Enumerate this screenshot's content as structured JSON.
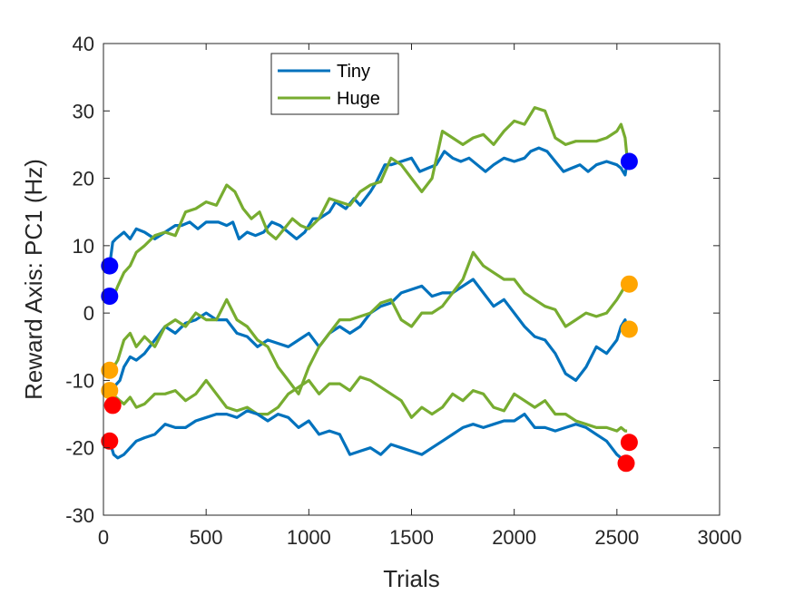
{
  "chart_data": {
    "type": "line",
    "xlabel": "Trials",
    "ylabel": "Reward Axis: PC1 (Hz)",
    "xlim": [
      0,
      3000
    ],
    "ylim": [
      -30,
      40
    ],
    "xticks": [
      0,
      500,
      1000,
      1500,
      2000,
      2500,
      3000
    ],
    "yticks": [
      -30,
      -20,
      -10,
      0,
      10,
      20,
      30,
      40
    ],
    "grid": false,
    "legend_position": "top-center",
    "legend": [
      {
        "name": "Tiny",
        "color": "#0072BD"
      },
      {
        "name": "Huge",
        "color": "#77AC30"
      }
    ],
    "series": [
      {
        "name": "Tiny",
        "group": "top",
        "color": "#0072BD",
        "x": [
          30,
          45,
          60,
          100,
          130,
          160,
          200,
          250,
          300,
          350,
          380,
          420,
          460,
          500,
          560,
          600,
          630,
          660,
          700,
          740,
          780,
          820,
          860,
          900,
          940,
          980,
          1020,
          1050,
          1100,
          1130,
          1180,
          1220,
          1250,
          1300,
          1330,
          1370,
          1400,
          1450,
          1500,
          1540,
          1580,
          1620,
          1660,
          1700,
          1740,
          1780,
          1820,
          1860,
          1900,
          1950,
          2000,
          2050,
          2080,
          2120,
          2160,
          2200,
          2240,
          2280,
          2320,
          2360,
          2400,
          2450,
          2500,
          2520,
          2540,
          2550
        ],
        "y": [
          7,
          10.5,
          11,
          12,
          11,
          12.5,
          12,
          11,
          12,
          13,
          13,
          13.5,
          12.5,
          13.5,
          13.5,
          13,
          13.5,
          11,
          12,
          11.5,
          12,
          13.5,
          13,
          12,
          11,
          12,
          14,
          14,
          15,
          16.5,
          15.5,
          17,
          16,
          18,
          19.5,
          22,
          22,
          22.5,
          23,
          21,
          21.5,
          22,
          24,
          23,
          22.5,
          23,
          22,
          21,
          22,
          23,
          22.5,
          23,
          24,
          24.5,
          24,
          22.5,
          21,
          21.5,
          22,
          21,
          22,
          22.5,
          22,
          21.5,
          20.5,
          22.5
        ]
      },
      {
        "name": "Huge",
        "group": "top",
        "color": "#77AC30",
        "x": [
          30,
          50,
          70,
          100,
          130,
          160,
          200,
          250,
          300,
          350,
          400,
          450,
          500,
          550,
          600,
          640,
          680,
          720,
          760,
          800,
          840,
          880,
          920,
          960,
          1000,
          1050,
          1100,
          1150,
          1200,
          1250,
          1300,
          1350,
          1400,
          1450,
          1500,
          1550,
          1600,
          1650,
          1700,
          1750,
          1800,
          1850,
          1900,
          1950,
          2000,
          2050,
          2100,
          2150,
          2200,
          2250,
          2300,
          2350,
          2400,
          2450,
          2500,
          2520,
          2540,
          2550
        ],
        "y": [
          2,
          2.5,
          4,
          6,
          7,
          9,
          10,
          11.5,
          12,
          11.5,
          15,
          15.5,
          16.5,
          16,
          19,
          18,
          15.5,
          14,
          15,
          12,
          11,
          12.5,
          14,
          13,
          12.5,
          14,
          17,
          16.5,
          16,
          18,
          19,
          19.5,
          23,
          22,
          20,
          18,
          20,
          27,
          26,
          25,
          26,
          26.5,
          25,
          27,
          28.5,
          28,
          30.5,
          30,
          26,
          25,
          25.5,
          25.5,
          25.5,
          26,
          27,
          28,
          26,
          23
        ]
      },
      {
        "name": "Tiny",
        "group": "middle",
        "color": "#0072BD",
        "x": [
          30,
          50,
          80,
          100,
          130,
          160,
          200,
          250,
          300,
          350,
          400,
          450,
          500,
          550,
          600,
          650,
          700,
          750,
          800,
          850,
          900,
          950,
          1000,
          1050,
          1100,
          1150,
          1200,
          1250,
          1300,
          1350,
          1400,
          1450,
          1500,
          1550,
          1600,
          1650,
          1700,
          1750,
          1800,
          1850,
          1900,
          1950,
          2000,
          2050,
          2100,
          2150,
          2200,
          2250,
          2300,
          2350,
          2400,
          2450,
          2500,
          2520,
          2540,
          2550
        ],
        "y": [
          -11.5,
          -11,
          -10,
          -8,
          -6.5,
          -7,
          -6,
          -4,
          -2,
          -3,
          -1.5,
          -1,
          0,
          -1,
          -1,
          -3,
          -3.5,
          -5,
          -4,
          -4.5,
          -5,
          -4,
          -3,
          -5,
          -3,
          -2,
          -3,
          -2,
          0,
          1,
          1.5,
          3,
          3.5,
          4,
          2.5,
          3,
          3,
          4,
          5,
          3,
          1,
          2,
          0,
          -2,
          -3.5,
          -4,
          -6,
          -9,
          -10,
          -8,
          -5,
          -6,
          -4,
          -2,
          -1,
          -2.5
        ]
      },
      {
        "name": "Huge",
        "group": "middle",
        "color": "#77AC30",
        "x": [
          30,
          50,
          70,
          100,
          130,
          160,
          200,
          250,
          300,
          350,
          400,
          450,
          500,
          550,
          600,
          650,
          700,
          750,
          800,
          850,
          900,
          950,
          1000,
          1050,
          1100,
          1150,
          1200,
          1250,
          1300,
          1350,
          1400,
          1450,
          1500,
          1550,
          1600,
          1650,
          1700,
          1750,
          1800,
          1850,
          1900,
          1950,
          2000,
          2050,
          2100,
          2150,
          2200,
          2250,
          2300,
          2350,
          2400,
          2450,
          2500,
          2520,
          2540,
          2550
        ],
        "y": [
          -8.5,
          -8,
          -7,
          -4,
          -3,
          -5,
          -3.5,
          -5,
          -2,
          -1,
          -2,
          0,
          -1,
          -1,
          2,
          -1,
          -2,
          -4,
          -5,
          -8,
          -10,
          -12,
          -8,
          -5,
          -3,
          -1,
          -1,
          -0.5,
          0,
          1.5,
          2,
          -1,
          -2,
          0,
          0,
          1,
          3,
          5,
          9,
          7,
          6,
          5,
          5,
          3,
          2,
          1,
          0.5,
          -2,
          -1,
          0,
          -0.5,
          0,
          2,
          3,
          4,
          4.3
        ]
      },
      {
        "name": "Huge",
        "group": "bottom",
        "color": "#77AC30",
        "x": [
          45,
          60,
          80,
          100,
          130,
          160,
          200,
          250,
          300,
          350,
          400,
          450,
          500,
          550,
          600,
          650,
          700,
          750,
          800,
          850,
          900,
          950,
          1000,
          1050,
          1100,
          1150,
          1200,
          1250,
          1300,
          1350,
          1400,
          1450,
          1500,
          1550,
          1600,
          1650,
          1700,
          1750,
          1800,
          1850,
          1900,
          1950,
          2000,
          2050,
          2100,
          2150,
          2200,
          2250,
          2300,
          2350,
          2400,
          2450,
          2500,
          2520,
          2540,
          2550
        ],
        "y": [
          -13.5,
          -12.5,
          -13,
          -13.5,
          -12.5,
          -14,
          -13.5,
          -12,
          -12,
          -11.5,
          -13,
          -12,
          -10,
          -12,
          -14,
          -14.5,
          -14,
          -15,
          -15,
          -14,
          -12,
          -11,
          -10,
          -12,
          -10.5,
          -10.5,
          -11.5,
          -9.5,
          -10,
          -11,
          -12,
          -13,
          -15.5,
          -14,
          -15,
          -14,
          -12,
          -13,
          -11.5,
          -12,
          -14,
          -14.5,
          -12,
          -13,
          -14,
          -13,
          -15,
          -15,
          -16,
          -16.5,
          -17,
          -17,
          -17.5,
          -17,
          -17.5,
          -17.5
        ]
      },
      {
        "name": "Tiny",
        "group": "bottom",
        "color": "#0072BD",
        "x": [
          30,
          50,
          70,
          100,
          130,
          160,
          200,
          250,
          300,
          350,
          400,
          450,
          500,
          550,
          600,
          650,
          700,
          750,
          800,
          850,
          900,
          950,
          1000,
          1050,
          1100,
          1150,
          1200,
          1250,
          1300,
          1350,
          1400,
          1450,
          1500,
          1550,
          1600,
          1650,
          1700,
          1750,
          1800,
          1850,
          1900,
          1950,
          2000,
          2050,
          2100,
          2150,
          2200,
          2250,
          2300,
          2350,
          2400,
          2450,
          2500,
          2520,
          2540,
          2550
        ],
        "y": [
          -19,
          -21,
          -21.5,
          -21,
          -20,
          -19,
          -18.5,
          -18,
          -16.5,
          -17,
          -17,
          -16,
          -15.5,
          -15,
          -15,
          -15.5,
          -14.5,
          -15,
          -16,
          -15,
          -15.5,
          -17,
          -16,
          -18,
          -17.5,
          -18,
          -21,
          -20.5,
          -20,
          -21,
          -19.5,
          -20,
          -20.5,
          -21,
          -20,
          -19,
          -18,
          -17,
          -16.5,
          -17,
          -16.5,
          -16,
          -16,
          -15,
          -17,
          -17,
          -17.5,
          -17,
          -16.5,
          -17,
          -18,
          -19,
          -21,
          -21.5,
          -22,
          -22.2
        ]
      }
    ],
    "markers": [
      {
        "x": 30,
        "y": 7,
        "color": "#0000FF"
      },
      {
        "x": 30,
        "y": 2.5,
        "color": "#0000FF"
      },
      {
        "x": 2560,
        "y": 22.5,
        "color": "#0000FF"
      },
      {
        "x": 30,
        "y": -8.5,
        "color": "#FFA500"
      },
      {
        "x": 30,
        "y": -11.5,
        "color": "#FFA500"
      },
      {
        "x": 2560,
        "y": 4.3,
        "color": "#FFA500"
      },
      {
        "x": 2560,
        "y": -2.4,
        "color": "#FFA500"
      },
      {
        "x": 45,
        "y": -13.7,
        "color": "#FF0000"
      },
      {
        "x": 30,
        "y": -19,
        "color": "#FF0000"
      },
      {
        "x": 2560,
        "y": -19.2,
        "color": "#FF0000"
      },
      {
        "x": 2545,
        "y": -22.3,
        "color": "#FF0000"
      }
    ]
  }
}
